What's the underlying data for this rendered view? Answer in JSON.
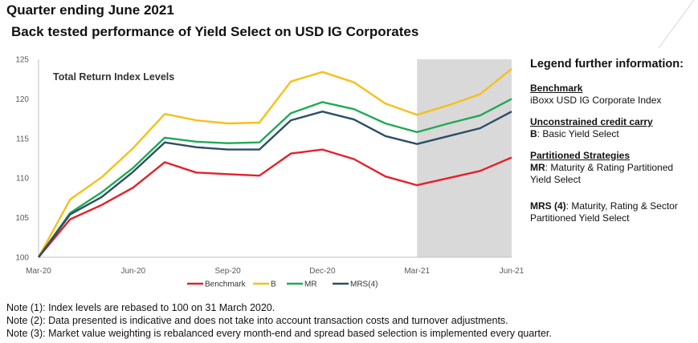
{
  "header": {
    "title": "Quarter ending June 2021",
    "subtitle": "Back tested performance of Yield Select on USD IG Corporates"
  },
  "chart_data": {
    "type": "line",
    "title": "Total Return Index Levels",
    "x": [
      "Mar-20",
      "Apr-20",
      "May-20",
      "Jun-20",
      "Jul-20",
      "Aug-20",
      "Sep-20",
      "Oct-20",
      "Nov-20",
      "Dec-20",
      "Jan-21",
      "Feb-21",
      "Mar-21",
      "Apr-21",
      "May-21",
      "Jun-21"
    ],
    "x_tick_labels": [
      "Mar-20",
      "Jun-20",
      "Sep-20",
      "Dec-20",
      "Mar-21",
      "Jun-21"
    ],
    "y_ticks": [
      100,
      105,
      110,
      115,
      120,
      125
    ],
    "ylim": [
      100,
      125
    ],
    "shaded_region": {
      "from": "Mar-21",
      "to": "Jun-21",
      "color": "#d9d9d9"
    },
    "series": [
      {
        "name": "Benchmark",
        "color": "#e4202a",
        "values": [
          100,
          104.8,
          106.6,
          108.8,
          112.0,
          110.7,
          110.5,
          110.3,
          113.1,
          113.6,
          112.4,
          110.2,
          109.1,
          110.0,
          110.9,
          112.6
        ]
      },
      {
        "name": "B",
        "color": "#f5c01a",
        "values": [
          100,
          107.3,
          110.1,
          113.8,
          118.1,
          117.3,
          116.9,
          117.0,
          122.2,
          123.4,
          122.1,
          119.4,
          118.0,
          119.2,
          120.6,
          123.8
        ]
      },
      {
        "name": "MR",
        "color": "#1faa55",
        "values": [
          100,
          105.6,
          108.2,
          111.3,
          115.1,
          114.6,
          114.4,
          114.5,
          118.2,
          119.6,
          118.7,
          116.9,
          115.8,
          116.9,
          117.9,
          120.0
        ]
      },
      {
        "name": "MRS(4)",
        "color": "#2c4e66",
        "values": [
          100,
          105.4,
          107.6,
          110.8,
          114.5,
          113.9,
          113.6,
          113.6,
          117.3,
          118.4,
          117.4,
          115.3,
          114.3,
          115.3,
          116.3,
          118.4
        ]
      }
    ],
    "grid": false,
    "legend": "bottom"
  },
  "side_legend": {
    "heading": "Legend further information:",
    "benchmark_title": "Benchmark",
    "benchmark_desc": "iBoxx USD IG Corporate Index",
    "uncon_title": "Unconstrained credit carry",
    "uncon_code": "B",
    "uncon_desc": ": Basic Yield Select",
    "part_title": "Partitioned Strategies",
    "mr_code": "MR",
    "mr_desc": ": Maturity & Rating Partitioned Yield Select",
    "mrs_code": "MRS (4)",
    "mrs_desc": ": Maturity, Rating & Sector Partitioned Yield Select"
  },
  "notes": [
    "Note (1): Index levels are rebased to 100 on 31 March 2020.",
    "Note (2): Data presented is indicative and does not take into account transaction costs and turnover adjustments.",
    "Note (3): Market value weighting is rebalanced every month-end and spread based selection is implemented every quarter."
  ]
}
